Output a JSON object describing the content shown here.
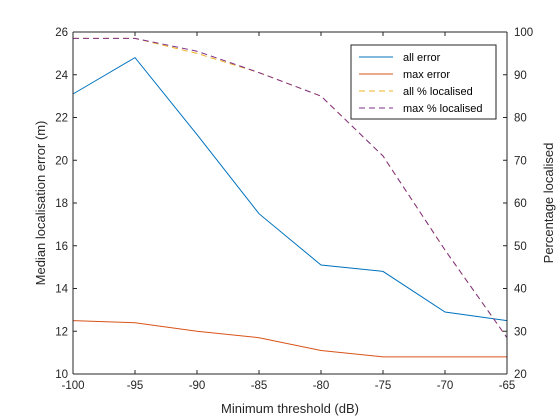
{
  "chart_data": {
    "type": "line",
    "xlabel": "Minimum threshold (dB)",
    "ylabel_left": "Median localisation error (m)",
    "ylabel_right": "Percentage localised",
    "x_range": [
      -100,
      -65
    ],
    "x_ticks": [
      -100,
      -95,
      -90,
      -85,
      -80,
      -75,
      -70,
      -65
    ],
    "left_range": [
      10,
      26
    ],
    "left_ticks": [
      10,
      12,
      14,
      16,
      18,
      20,
      22,
      24,
      26
    ],
    "right_range": [
      20,
      100
    ],
    "right_ticks": [
      20,
      30,
      40,
      50,
      60,
      70,
      80,
      90,
      100
    ],
    "grid": false,
    "legend_position": "top-right",
    "x": [
      -100,
      -95,
      -90,
      -85,
      -80,
      -75,
      -70,
      -65
    ],
    "series": [
      {
        "name": "all error",
        "axis": "left",
        "style": "solid",
        "color": "#0072BD",
        "values": [
          23.1,
          24.8,
          21.2,
          17.5,
          15.1,
          14.8,
          12.9,
          12.5
        ]
      },
      {
        "name": "max error",
        "axis": "left",
        "style": "solid",
        "color": "#D95319",
        "values": [
          12.5,
          12.4,
          12.0,
          11.7,
          11.1,
          10.8,
          10.8,
          10.8
        ]
      },
      {
        "name": "all % localised",
        "axis": "right",
        "style": "dashed",
        "color": "#EDB120",
        "values": [
          98.5,
          98.5,
          95.0,
          90.5,
          85.0,
          71.0,
          49.0,
          28.5
        ]
      },
      {
        "name": "max % localised",
        "axis": "right",
        "style": "dashed",
        "color": "#7E2F8E",
        "values": [
          98.5,
          98.5,
          95.5,
          90.5,
          85.0,
          71.0,
          49.0,
          28.5
        ]
      }
    ]
  }
}
